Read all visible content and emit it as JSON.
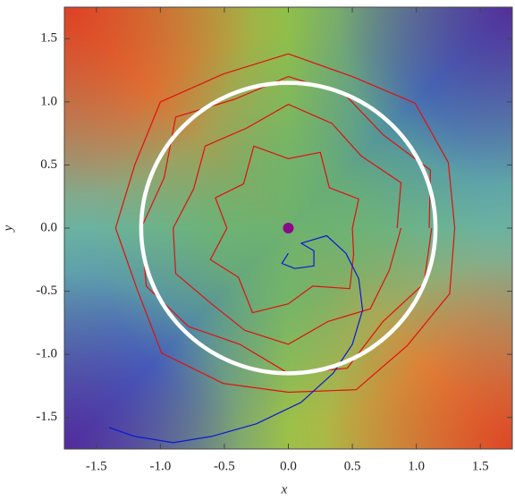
{
  "chart_data": {
    "type": "trajectory",
    "x_label": "x",
    "y_label": "y",
    "xlim": [
      -1.75,
      1.75
    ],
    "ylim": [
      -1.75,
      1.75
    ],
    "xticks": [
      -1.5,
      {
        "value": -1,
        "label": "-1.0"
      },
      -0.5,
      {
        "value": 0,
        "label": "0.0"
      },
      0.5,
      {
        "value": 1,
        "label": "1.0"
      },
      1.5
    ],
    "yticks": [
      -1.5,
      {
        "value": -1,
        "label": "-1.0"
      },
      -0.5,
      {
        "value": 0,
        "label": "0.0"
      },
      0.5,
      {
        "value": 1,
        "label": "1.0"
      },
      1.5
    ],
    "circle": {
      "radius": 1.15,
      "color": "#ffffff"
    },
    "point": {
      "x": 0,
      "y": 0,
      "color": "#8b0a8b"
    },
    "paths": [
      {
        "color": "#e01010",
        "x": [
          1.1,
          1.11,
          0.74,
          0.44,
          0,
          -0.42,
          -0.88,
          -0.97,
          -1.15,
          -1.11,
          -0.78,
          -0.38,
          0,
          0.46,
          0.74,
          1.06,
          1.12
        ],
        "y": [
          0,
          0.46,
          0.74,
          1.06,
          1.2,
          1.02,
          0.88,
          0.4,
          0,
          -0.46,
          -0.78,
          -0.92,
          -1.15,
          -1.11,
          -0.74,
          -0.44,
          0
        ]
      },
      {
        "color": "#e01010",
        "x": [
          0.85,
          0.88,
          0.57,
          0.34,
          0,
          -0.33,
          -0.65,
          -0.74,
          -0.9,
          -0.88,
          -0.6,
          -0.34,
          0,
          0.31,
          0.64,
          0.79,
          0.88
        ],
        "y": [
          0,
          0.36,
          0.57,
          0.83,
          0.98,
          0.79,
          0.65,
          0.31,
          0,
          -0.36,
          -0.6,
          -0.81,
          -0.92,
          -0.74,
          -0.64,
          -0.33,
          0
        ]
      },
      {
        "color": "#e01010",
        "x": [
          1.3,
          1.25,
          0.99,
          0.5,
          0,
          -0.51,
          -1.0,
          -1.2,
          -1.35,
          -1.18,
          -0.99,
          -0.51,
          0,
          0.53,
          0.93,
          1.26,
          1.3
        ],
        "y": [
          0,
          0.52,
          0.99,
          1.2,
          1.38,
          1.22,
          1.0,
          0.5,
          0,
          -0.49,
          -0.99,
          -1.23,
          -1.3,
          -1.28,
          -0.93,
          -0.52,
          0
        ]
      },
      {
        "color": "#e01010",
        "x": [
          0.5,
          0.55,
          0.32,
          0.25,
          0,
          -0.27,
          -0.35,
          -0.57,
          -0.48,
          -0.61,
          -0.39,
          -0.28,
          0,
          0.19,
          0.48,
          0.51,
          0.5
        ],
        "y": [
          0,
          0.23,
          0.32,
          0.6,
          0.55,
          0.65,
          0.35,
          0.24,
          0,
          -0.25,
          -0.39,
          -0.67,
          -0.6,
          -0.46,
          -0.48,
          -0.21,
          0
        ]
      },
      {
        "color": "#0a1ad0",
        "x": [
          0.0,
          -0.05,
          0.05,
          0.2,
          0.2,
          0.1,
          0.3,
          0.45,
          0.55,
          0.58,
          0.5,
          0.35,
          0.1,
          -0.25,
          -0.6,
          -0.9,
          -1.2,
          -1.4
        ],
        "y": [
          -0.2,
          -0.28,
          -0.32,
          -0.3,
          -0.18,
          -0.12,
          -0.06,
          -0.2,
          -0.4,
          -0.65,
          -0.92,
          -1.15,
          -1.38,
          -1.55,
          -1.65,
          -1.7,
          -1.65,
          -1.58
        ]
      }
    ]
  }
}
